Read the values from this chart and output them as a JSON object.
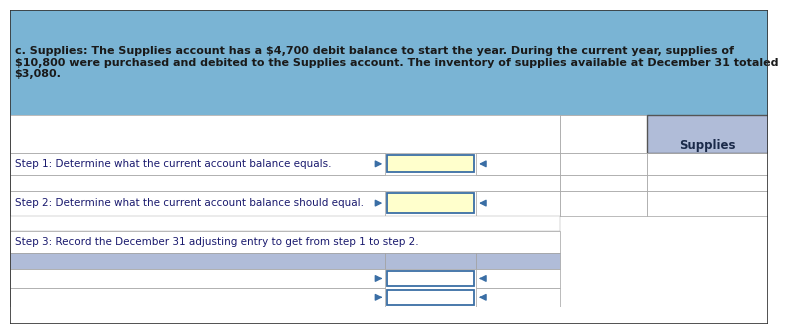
{
  "header_text": "c. Supplies: The Supplies account has a $4,700 debit balance to start the year. During the current year, supplies of\n$10,800 were purchased and debited to the Supplies account. The inventory of supplies available at December 31 totaled\n$3,080.",
  "header_bg": "#7ab4d4",
  "header_text_color": "#1a1a1a",
  "step1_text": "Step 1: Determine what the current account balance equals.",
  "step2_text": "Step 2: Determine what the current account balance should equal.",
  "step3_text": "Step 3: Record the December 31 adjusting entry to get from step 1 to step 2.",
  "supplies_label": "Supplies",
  "yellow_fill": "#ffffcc",
  "blue_border": "#3a6ea5",
  "supplies_header_bg": "#b0bcd8",
  "gray_row_bg": "#b0bcd8",
  "white_bg": "#ffffff",
  "grid_line": "#a0a0a0",
  "font_size": 8.0,
  "col_splits": [
    0.0,
    0.495,
    0.615,
    0.725,
    0.84,
    1.0
  ],
  "row_splits": [
    0.0,
    0.055,
    0.115,
    0.175,
    0.225,
    0.295,
    0.345,
    0.425,
    0.475,
    0.545,
    0.595,
    0.665,
    1.0
  ]
}
